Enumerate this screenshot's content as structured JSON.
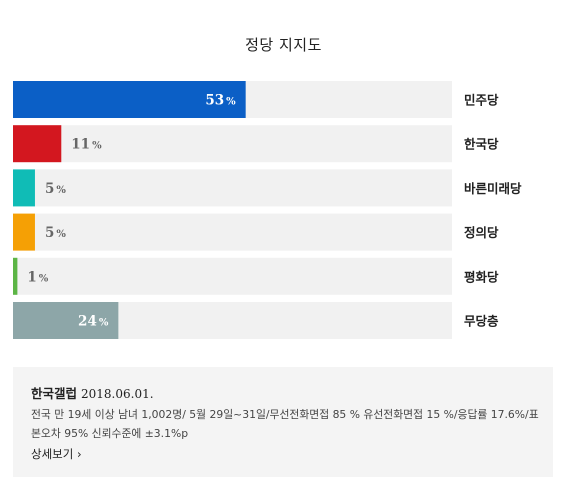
{
  "chart_data": {
    "type": "bar",
    "orientation": "horizontal",
    "title": "정당 지지도",
    "categories": [
      "민주당",
      "한국당",
      "바른미래당",
      "정의당",
      "평화당",
      "무당층"
    ],
    "values": [
      53,
      11,
      5,
      5,
      1,
      24
    ],
    "labels": [
      "53",
      "11",
      "5",
      "5",
      "1",
      "24"
    ],
    "unit": "%",
    "colors": [
      "#0b5fc6",
      "#d3171f",
      "#10bcb6",
      "#f5a005",
      "#5cb545",
      "#8da6a8"
    ],
    "xlim": [
      0,
      100
    ]
  },
  "source": {
    "org": "한국갤럽",
    "date": "2018.06.01.",
    "description": "전국 만 19세 이상 남녀 1,002명/ 5월 29일~31일/무선전화면접 85 % 유선전화면접 15 %/응답률 17.6%/표본오차 95% 신뢰수준에 ±3.1%p",
    "more_label": "상세보기 ›"
  }
}
